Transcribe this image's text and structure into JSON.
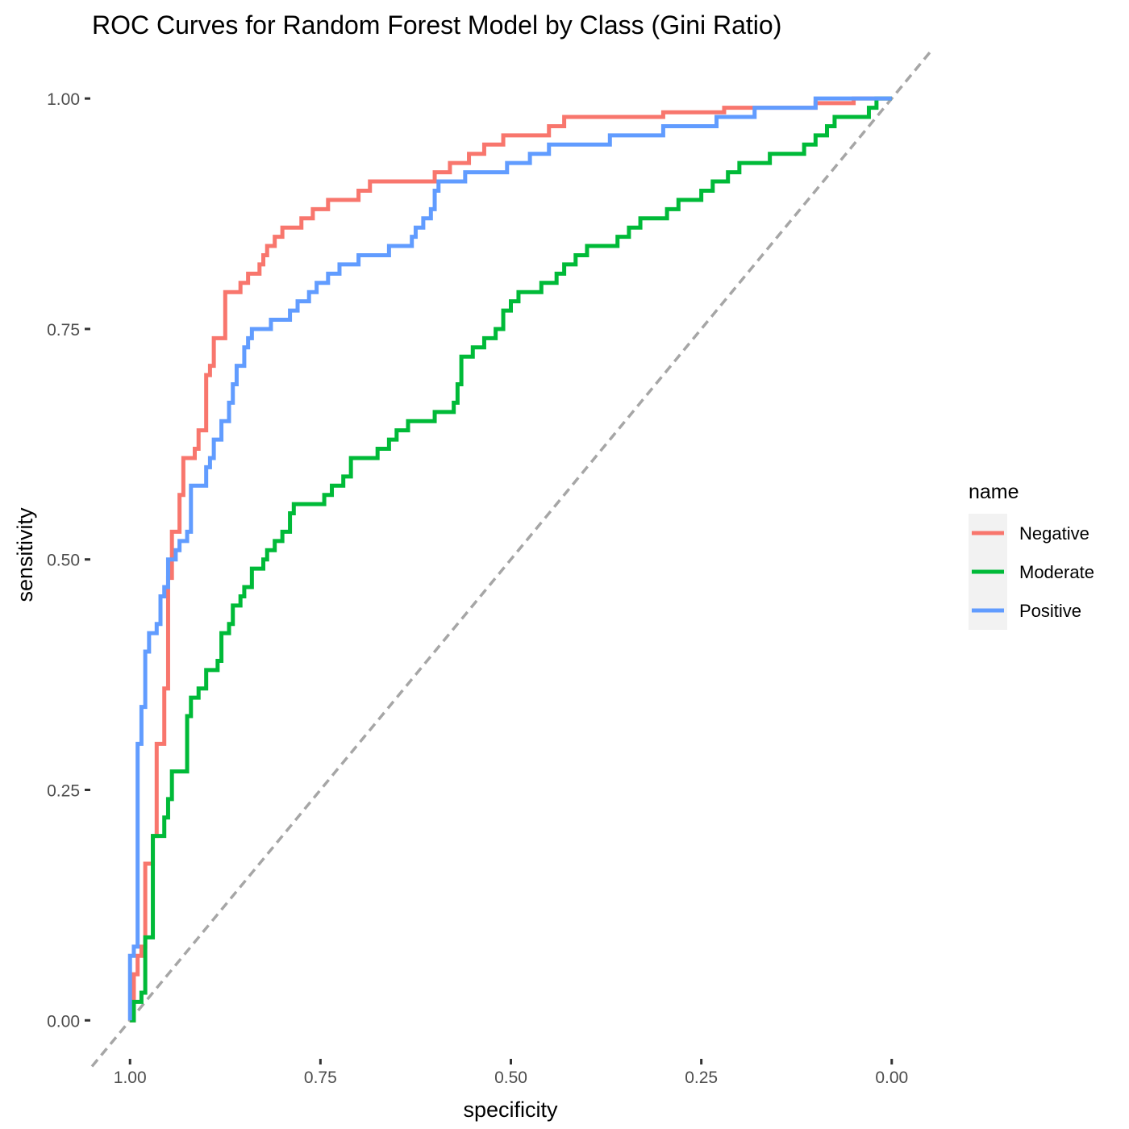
{
  "chart_data": {
    "type": "line",
    "title": "ROC Curves for Random Forest Model by Class (Gini Ratio)",
    "xlabel": "specificity",
    "ylabel": "sensitivity",
    "xlim": [
      1.05,
      -0.05
    ],
    "ylim": [
      -0.04,
      1.05
    ],
    "x_reversed": true,
    "x_ticks": [
      1.0,
      0.75,
      0.5,
      0.25,
      0.0
    ],
    "x_tick_labels": [
      "1.00",
      "0.75",
      "0.50",
      "0.25",
      "0.00"
    ],
    "y_ticks": [
      0.0,
      0.25,
      0.5,
      0.75,
      1.0
    ],
    "y_tick_labels": [
      "0.00",
      "0.25",
      "0.50",
      "0.75",
      "1.00"
    ],
    "grid": false,
    "legend": {
      "title": "name",
      "position": "right"
    },
    "reference_line": {
      "from": [
        1.0,
        0.0
      ],
      "to": [
        0.0,
        1.0
      ],
      "color": "#a6a6a6",
      "style": "dashed"
    },
    "series": [
      {
        "name": "Negative",
        "color": "#F8766D",
        "points": [
          [
            1.0,
            0.0
          ],
          [
            0.995,
            0.05
          ],
          [
            0.99,
            0.07
          ],
          [
            0.985,
            0.08
          ],
          [
            0.98,
            0.17
          ],
          [
            0.97,
            0.2
          ],
          [
            0.965,
            0.3
          ],
          [
            0.955,
            0.36
          ],
          [
            0.95,
            0.48
          ],
          [
            0.945,
            0.53
          ],
          [
            0.935,
            0.57
          ],
          [
            0.93,
            0.61
          ],
          [
            0.915,
            0.62
          ],
          [
            0.91,
            0.64
          ],
          [
            0.9,
            0.7
          ],
          [
            0.895,
            0.71
          ],
          [
            0.89,
            0.74
          ],
          [
            0.875,
            0.79
          ],
          [
            0.865,
            0.79
          ],
          [
            0.855,
            0.8
          ],
          [
            0.845,
            0.81
          ],
          [
            0.83,
            0.82
          ],
          [
            0.825,
            0.83
          ],
          [
            0.82,
            0.84
          ],
          [
            0.81,
            0.85
          ],
          [
            0.8,
            0.86
          ],
          [
            0.79,
            0.86
          ],
          [
            0.78,
            0.86
          ],
          [
            0.775,
            0.87
          ],
          [
            0.76,
            0.88
          ],
          [
            0.74,
            0.89
          ],
          [
            0.72,
            0.89
          ],
          [
            0.7,
            0.9
          ],
          [
            0.685,
            0.91
          ],
          [
            0.66,
            0.91
          ],
          [
            0.6,
            0.92
          ],
          [
            0.58,
            0.93
          ],
          [
            0.555,
            0.94
          ],
          [
            0.535,
            0.95
          ],
          [
            0.51,
            0.96
          ],
          [
            0.48,
            0.96
          ],
          [
            0.45,
            0.97
          ],
          [
            0.43,
            0.98
          ],
          [
            0.38,
            0.98
          ],
          [
            0.3,
            0.985
          ],
          [
            0.22,
            0.99
          ],
          [
            0.15,
            0.99
          ],
          [
            0.1,
            0.995
          ],
          [
            0.05,
            1.0
          ],
          [
            0.0,
            1.0
          ]
        ]
      },
      {
        "name": "Moderate",
        "color": "#00BA38",
        "points": [
          [
            1.0,
            0.0
          ],
          [
            0.995,
            0.02
          ],
          [
            0.985,
            0.03
          ],
          [
            0.98,
            0.09
          ],
          [
            0.97,
            0.09
          ],
          [
            0.97,
            0.2
          ],
          [
            0.96,
            0.2
          ],
          [
            0.955,
            0.22
          ],
          [
            0.95,
            0.24
          ],
          [
            0.945,
            0.27
          ],
          [
            0.93,
            0.27
          ],
          [
            0.925,
            0.33
          ],
          [
            0.92,
            0.35
          ],
          [
            0.91,
            0.36
          ],
          [
            0.9,
            0.38
          ],
          [
            0.885,
            0.39
          ],
          [
            0.88,
            0.42
          ],
          [
            0.87,
            0.43
          ],
          [
            0.865,
            0.45
          ],
          [
            0.855,
            0.46
          ],
          [
            0.85,
            0.47
          ],
          [
            0.84,
            0.49
          ],
          [
            0.825,
            0.5
          ],
          [
            0.82,
            0.51
          ],
          [
            0.81,
            0.52
          ],
          [
            0.8,
            0.53
          ],
          [
            0.79,
            0.55
          ],
          [
            0.785,
            0.56
          ],
          [
            0.76,
            0.56
          ],
          [
            0.745,
            0.57
          ],
          [
            0.735,
            0.58
          ],
          [
            0.72,
            0.59
          ],
          [
            0.71,
            0.61
          ],
          [
            0.68,
            0.61
          ],
          [
            0.675,
            0.62
          ],
          [
            0.66,
            0.63
          ],
          [
            0.65,
            0.64
          ],
          [
            0.635,
            0.65
          ],
          [
            0.615,
            0.65
          ],
          [
            0.6,
            0.66
          ],
          [
            0.58,
            0.66
          ],
          [
            0.575,
            0.67
          ],
          [
            0.57,
            0.69
          ],
          [
            0.565,
            0.72
          ],
          [
            0.55,
            0.73
          ],
          [
            0.535,
            0.74
          ],
          [
            0.52,
            0.75
          ],
          [
            0.51,
            0.77
          ],
          [
            0.5,
            0.78
          ],
          [
            0.49,
            0.79
          ],
          [
            0.47,
            0.79
          ],
          [
            0.46,
            0.8
          ],
          [
            0.44,
            0.81
          ],
          [
            0.43,
            0.82
          ],
          [
            0.415,
            0.83
          ],
          [
            0.4,
            0.84
          ],
          [
            0.375,
            0.84
          ],
          [
            0.36,
            0.85
          ],
          [
            0.345,
            0.86
          ],
          [
            0.33,
            0.87
          ],
          [
            0.31,
            0.87
          ],
          [
            0.295,
            0.88
          ],
          [
            0.28,
            0.89
          ],
          [
            0.265,
            0.89
          ],
          [
            0.25,
            0.9
          ],
          [
            0.235,
            0.91
          ],
          [
            0.215,
            0.92
          ],
          [
            0.2,
            0.93
          ],
          [
            0.175,
            0.93
          ],
          [
            0.16,
            0.94
          ],
          [
            0.13,
            0.94
          ],
          [
            0.115,
            0.95
          ],
          [
            0.1,
            0.96
          ],
          [
            0.085,
            0.97
          ],
          [
            0.075,
            0.98
          ],
          [
            0.05,
            0.98
          ],
          [
            0.03,
            0.99
          ],
          [
            0.02,
            1.0
          ],
          [
            0.0,
            1.0
          ]
        ]
      },
      {
        "name": "Positive",
        "color": "#619CFF",
        "points": [
          [
            1.0,
            0.0
          ],
          [
            1.0,
            0.07
          ],
          [
            0.995,
            0.08
          ],
          [
            0.99,
            0.3
          ],
          [
            0.985,
            0.34
          ],
          [
            0.98,
            0.4
          ],
          [
            0.975,
            0.42
          ],
          [
            0.965,
            0.43
          ],
          [
            0.96,
            0.46
          ],
          [
            0.955,
            0.47
          ],
          [
            0.95,
            0.5
          ],
          [
            0.94,
            0.51
          ],
          [
            0.935,
            0.52
          ],
          [
            0.925,
            0.53
          ],
          [
            0.92,
            0.58
          ],
          [
            0.905,
            0.58
          ],
          [
            0.9,
            0.6
          ],
          [
            0.895,
            0.61
          ],
          [
            0.89,
            0.63
          ],
          [
            0.88,
            0.65
          ],
          [
            0.87,
            0.67
          ],
          [
            0.865,
            0.69
          ],
          [
            0.86,
            0.71
          ],
          [
            0.85,
            0.73
          ],
          [
            0.845,
            0.74
          ],
          [
            0.84,
            0.75
          ],
          [
            0.82,
            0.75
          ],
          [
            0.815,
            0.76
          ],
          [
            0.8,
            0.76
          ],
          [
            0.79,
            0.77
          ],
          [
            0.78,
            0.78
          ],
          [
            0.765,
            0.79
          ],
          [
            0.755,
            0.8
          ],
          [
            0.74,
            0.81
          ],
          [
            0.725,
            0.82
          ],
          [
            0.71,
            0.82
          ],
          [
            0.7,
            0.83
          ],
          [
            0.675,
            0.83
          ],
          [
            0.66,
            0.84
          ],
          [
            0.64,
            0.84
          ],
          [
            0.63,
            0.85
          ],
          [
            0.625,
            0.86
          ],
          [
            0.615,
            0.87
          ],
          [
            0.605,
            0.88
          ],
          [
            0.6,
            0.9
          ],
          [
            0.595,
            0.91
          ],
          [
            0.58,
            0.91
          ],
          [
            0.56,
            0.92
          ],
          [
            0.52,
            0.92
          ],
          [
            0.505,
            0.93
          ],
          [
            0.48,
            0.93
          ],
          [
            0.475,
            0.94
          ],
          [
            0.45,
            0.95
          ],
          [
            0.4,
            0.95
          ],
          [
            0.37,
            0.96
          ],
          [
            0.33,
            0.96
          ],
          [
            0.3,
            0.97
          ],
          [
            0.24,
            0.97
          ],
          [
            0.23,
            0.98
          ],
          [
            0.2,
            0.98
          ],
          [
            0.18,
            0.99
          ],
          [
            0.12,
            0.99
          ],
          [
            0.1,
            1.0
          ],
          [
            0.0,
            1.0
          ]
        ]
      }
    ]
  }
}
